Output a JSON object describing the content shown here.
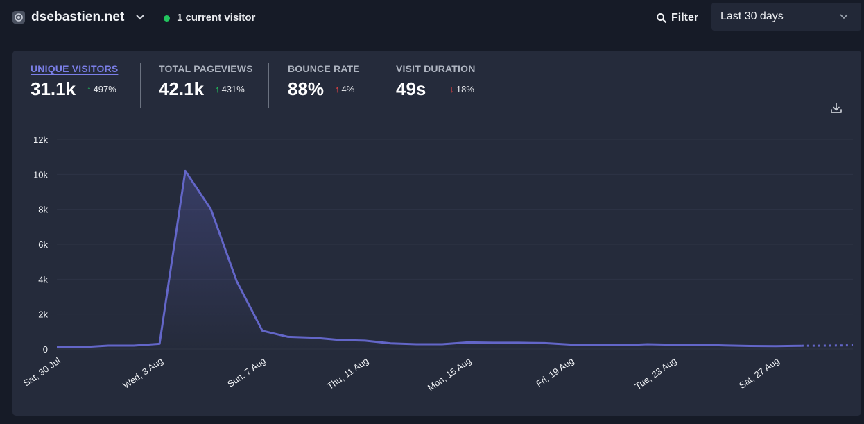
{
  "header": {
    "site_name": "dsebastien.net",
    "current_visitors": "1 current visitor",
    "filter_label": "Filter",
    "period": "Last 30 days"
  },
  "stats": [
    {
      "label": "UNIQUE VISITORS",
      "value": "31.1k",
      "change": "497%",
      "direction": "up",
      "active": true
    },
    {
      "label": "TOTAL PAGEVIEWS",
      "value": "42.1k",
      "change": "431%",
      "direction": "up",
      "active": false
    },
    {
      "label": "BOUNCE RATE",
      "value": "88%",
      "change": "4%",
      "direction": "up",
      "active": false
    },
    {
      "label": "VISIT DURATION",
      "value": "49s",
      "change": "18%",
      "direction": "down",
      "active": false
    }
  ],
  "colors": {
    "accent": "#6366c8",
    "positive": "#22c55e",
    "negative": "#ef4444"
  },
  "chart_data": {
    "type": "area",
    "title": "",
    "xlabel": "",
    "ylabel": "",
    "ylim": [
      0,
      12000
    ],
    "y_ticks": [
      0,
      2000,
      4000,
      6000,
      8000,
      10000,
      12000
    ],
    "y_tick_labels": [
      "0",
      "2k",
      "4k",
      "6k",
      "8k",
      "10k",
      "12k"
    ],
    "x": [
      "Sat, 30 Jul",
      "Sun, 31 Jul",
      "Mon, 1 Aug",
      "Tue, 2 Aug",
      "Wed, 3 Aug",
      "Thu, 4 Aug",
      "Fri, 5 Aug",
      "Sat, 6 Aug",
      "Sun, 7 Aug",
      "Mon, 8 Aug",
      "Tue, 9 Aug",
      "Wed, 10 Aug",
      "Thu, 11 Aug",
      "Fri, 12 Aug",
      "Sat, 13 Aug",
      "Sun, 14 Aug",
      "Mon, 15 Aug",
      "Tue, 16 Aug",
      "Wed, 17 Aug",
      "Thu, 18 Aug",
      "Fri, 19 Aug",
      "Sat, 20 Aug",
      "Sun, 21 Aug",
      "Mon, 22 Aug",
      "Tue, 23 Aug",
      "Wed, 24 Aug",
      "Thu, 25 Aug",
      "Fri, 26 Aug",
      "Sat, 27 Aug",
      "Sun, 28 Aug",
      "Mon, 29 Aug",
      "Tue, 30 Aug"
    ],
    "x_tick_labels": [
      "Sat, 30 Jul",
      "Wed, 3 Aug",
      "Sun, 7 Aug",
      "Thu, 11 Aug",
      "Mon, 15 Aug",
      "Fri, 19 Aug",
      "Tue, 23 Aug",
      "Sat, 27 Aug"
    ],
    "series": [
      {
        "values": [
          100,
          110,
          200,
          200,
          300,
          10200,
          8000,
          3900,
          1050,
          700,
          650,
          520,
          480,
          330,
          280,
          280,
          380,
          360,
          360,
          340,
          260,
          220,
          220,
          280,
          250,
          250,
          210,
          180,
          170,
          190,
          200,
          220
        ]
      }
    ],
    "incomplete_from_index": 29,
    "grid": true
  }
}
